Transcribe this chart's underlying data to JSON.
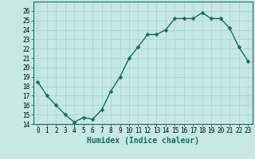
{
  "x": [
    0,
    1,
    2,
    3,
    4,
    5,
    6,
    7,
    8,
    9,
    10,
    11,
    12,
    13,
    14,
    15,
    16,
    17,
    18,
    19,
    20,
    21,
    22,
    23
  ],
  "y": [
    18.5,
    17.0,
    16.0,
    15.0,
    14.2,
    14.7,
    14.5,
    15.5,
    17.5,
    19.0,
    21.0,
    22.2,
    23.5,
    23.5,
    24.0,
    25.2,
    25.2,
    25.2,
    25.8,
    25.2,
    25.2,
    24.2,
    22.2,
    20.7
  ],
  "xlabel": "Humidex (Indice chaleur)",
  "xlim": [
    -0.5,
    23.5
  ],
  "ylim": [
    14,
    27
  ],
  "yticks": [
    14,
    15,
    16,
    17,
    18,
    19,
    20,
    21,
    22,
    23,
    24,
    25,
    26
  ],
  "xticks": [
    0,
    1,
    2,
    3,
    4,
    5,
    6,
    7,
    8,
    9,
    10,
    11,
    12,
    13,
    14,
    15,
    16,
    17,
    18,
    19,
    20,
    21,
    22,
    23
  ],
  "line_color": "#1a6b5a",
  "marker_color": "#1a6b5a",
  "bg_color": "#c5e8e5",
  "grid_color": "#aed4d1",
  "tick_label_fontsize": 5.5,
  "xlabel_fontsize": 7.0,
  "marker_size": 2.5,
  "line_width": 1.0
}
